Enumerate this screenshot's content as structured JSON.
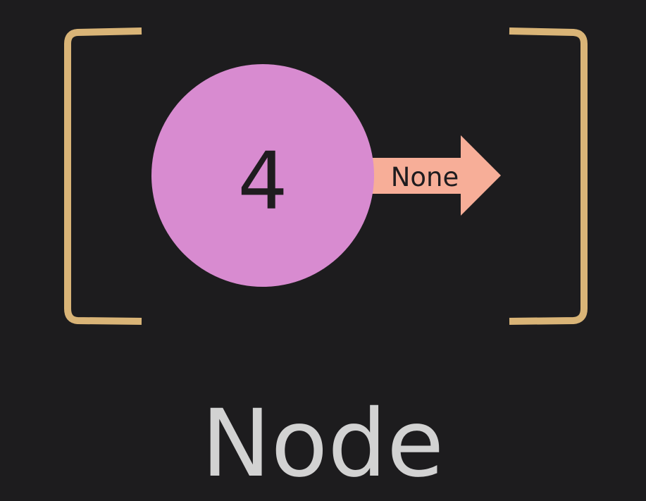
{
  "node": {
    "value": "4",
    "next_label": "None",
    "caption": "Node"
  },
  "colors": {
    "background": "#1d1c1e",
    "bracket": "#d9b477",
    "circle": "#d88bd0",
    "arrow": "#f7ae98",
    "caption": "#d2d2d2",
    "text_dark": "#1f1c1f"
  }
}
